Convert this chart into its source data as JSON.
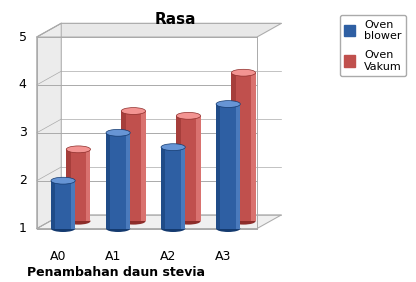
{
  "title": "Rasa",
  "xlabel": "Penambahan daun stevia",
  "categories": [
    "A0",
    "A1",
    "A2",
    "A3"
  ],
  "series": [
    {
      "label": "Oven\nblower",
      "values": [
        2.0,
        3.0,
        2.7,
        3.6
      ],
      "color": "#2E5FA3",
      "color_top": "#3A6FBD",
      "color_dark": "#1A3F73"
    },
    {
      "label": "Oven\nVakum",
      "values": [
        2.5,
        3.3,
        3.2,
        4.1
      ],
      "color": "#C0504D",
      "color_top": "#D06060",
      "color_dark": "#903030"
    }
  ],
  "ylim": [
    1,
    5
  ],
  "yticks": [
    1,
    2,
    3,
    4,
    5
  ],
  "background_color": "#FFFFFF",
  "grid_color": "#AAAAAA",
  "figsize": [
    4.16,
    2.82
  ],
  "dpi": 100
}
